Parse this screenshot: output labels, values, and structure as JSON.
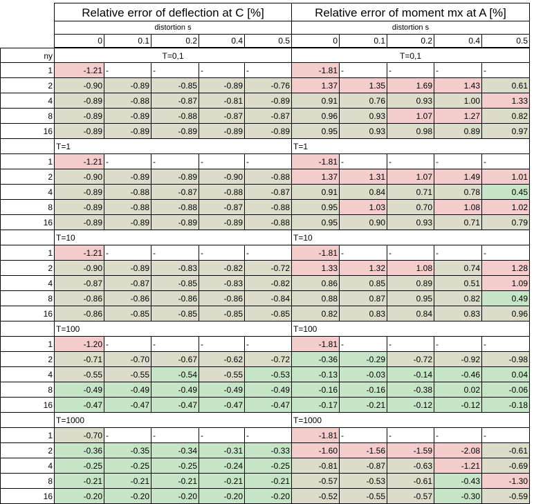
{
  "header": {
    "left_title": "Relative error of deflection at C [%]",
    "right_title": "Relative error of moment mx at A [%]",
    "left_sub": "distortion s",
    "right_sub": "distortion s",
    "s_values": [
      "0",
      "0.1",
      "0.2",
      "0.4",
      "0.5"
    ],
    "row_label": "ny"
  },
  "colors": {
    "green": "#c6e5c6",
    "red": "#f4cccc",
    "neutral": "#dcdccb",
    "white": "#ffffff"
  },
  "blocks": [
    {
      "left_label": "T=0,1",
      "right_label": "T=0,1",
      "rows": [
        {
          "ny": "1",
          "left": [
            "-1.21",
            "-",
            "-",
            "-",
            "-"
          ],
          "right": [
            "-1.81",
            "-",
            "-",
            "-",
            "-"
          ]
        },
        {
          "ny": "2",
          "left": [
            "-0.90",
            "-0.89",
            "-0.85",
            "-0.89",
            "-0.76"
          ],
          "right": [
            "1.37",
            "1.35",
            "1.69",
            "1.43",
            "0.61"
          ]
        },
        {
          "ny": "4",
          "left": [
            "-0.89",
            "-0.88",
            "-0.87",
            "-0.81",
            "-0.89"
          ],
          "right": [
            "0.91",
            "0.76",
            "0.93",
            "1.00",
            "1.33"
          ]
        },
        {
          "ny": "8",
          "left": [
            "-0.89",
            "-0.89",
            "-0.88",
            "-0.87",
            "-0.87"
          ],
          "right": [
            "0.96",
            "0.93",
            "1.07",
            "1.27",
            "0.82"
          ]
        },
        {
          "ny": "16",
          "left": [
            "-0.89",
            "-0.89",
            "-0.89",
            "-0.89",
            "-0.89"
          ],
          "right": [
            "0.95",
            "0.93",
            "0.98",
            "0.89",
            "0.97"
          ]
        }
      ]
    },
    {
      "left_label": "T=1",
      "right_label": "T=1",
      "rows": [
        {
          "ny": "1",
          "left": [
            "-1.21",
            "-",
            "-",
            "-",
            "-"
          ],
          "right": [
            "-1.81",
            "-",
            "-",
            "-",
            "-"
          ]
        },
        {
          "ny": "2",
          "left": [
            "-0.90",
            "-0.89",
            "-0.89",
            "-0.90",
            "-0.88"
          ],
          "right": [
            "1.37",
            "1.31",
            "1.07",
            "1.49",
            "1.01"
          ]
        },
        {
          "ny": "4",
          "left": [
            "-0.89",
            "-0.88",
            "-0.87",
            "-0.88",
            "-0.87"
          ],
          "right": [
            "0.91",
            "0.84",
            "0.71",
            "0.78",
            "0.45"
          ]
        },
        {
          "ny": "8",
          "left": [
            "-0.89",
            "-0.88",
            "-0.88",
            "-0.87",
            "-0.88"
          ],
          "right": [
            "0.95",
            "1.03",
            "0.70",
            "1.08",
            "1.02"
          ]
        },
        {
          "ny": "16",
          "left": [
            "-0.89",
            "-0.89",
            "-0.89",
            "-0.89",
            "-0.88"
          ],
          "right": [
            "0.95",
            "0.90",
            "0.93",
            "0.71",
            "0.79"
          ]
        }
      ]
    },
    {
      "left_label": "T=10",
      "right_label": "T=10",
      "rows": [
        {
          "ny": "1",
          "left": [
            "-1.21",
            "-",
            "-",
            "-",
            "-"
          ],
          "right": [
            "-1.81",
            "-",
            "-",
            "-",
            "-"
          ]
        },
        {
          "ny": "2",
          "left": [
            "-0.90",
            "-0.89",
            "-0.83",
            "-0.82",
            "-0.72"
          ],
          "right": [
            "1.33",
            "1.32",
            "1.08",
            "0.74",
            "1.28"
          ]
        },
        {
          "ny": "4",
          "left": [
            "-0.87",
            "-0.87",
            "-0.85",
            "-0.83",
            "-0.82"
          ],
          "right": [
            "0.86",
            "0.85",
            "0.89",
            "0.51",
            "1.09"
          ]
        },
        {
          "ny": "8",
          "left": [
            "-0.86",
            "-0.86",
            "-0.86",
            "-0.86",
            "-0.84"
          ],
          "right": [
            "0.88",
            "0.87",
            "0.95",
            "0.82",
            "0.49"
          ]
        },
        {
          "ny": "16",
          "left": [
            "-0.86",
            "-0.85",
            "-0.85",
            "-0.85",
            "-0.85"
          ],
          "right": [
            "0.82",
            "0.83",
            "0.84",
            "0.83",
            "0.96"
          ]
        }
      ]
    },
    {
      "left_label": "T=100",
      "right_label": "T=100",
      "rows": [
        {
          "ny": "1",
          "left": [
            "-1.20",
            "-",
            "-",
            "-",
            "-"
          ],
          "right": [
            "-1.81",
            "-",
            "-",
            "-",
            "-"
          ]
        },
        {
          "ny": "2",
          "left": [
            "-0.71",
            "-0.70",
            "-0.67",
            "-0.62",
            "-0.72"
          ],
          "right": [
            "-0.36",
            "-0.29",
            "-0.72",
            "-0.92",
            "-0.98"
          ]
        },
        {
          "ny": "4",
          "left": [
            "-0.55",
            "-0.55",
            "-0.54",
            "-0.55",
            "-0.53"
          ],
          "right": [
            "-0.13",
            "-0.03",
            "-0.14",
            "-0.46",
            "0.04"
          ]
        },
        {
          "ny": "8",
          "left": [
            "-0.49",
            "-0.49",
            "-0.49",
            "-0.49",
            "-0.49"
          ],
          "right": [
            "-0.16",
            "-0.16",
            "-0.38",
            "0.02",
            "-0.06"
          ]
        },
        {
          "ny": "16",
          "left": [
            "-0.47",
            "-0.47",
            "-0.47",
            "-0.47",
            "-0.47"
          ],
          "right": [
            "-0.17",
            "-0.21",
            "-0.12",
            "-0.12",
            "-0.18"
          ]
        }
      ]
    },
    {
      "left_label": "T=1000",
      "right_label": "T=1000",
      "rows": [
        {
          "ny": "1",
          "left": [
            "-0.70",
            "-",
            "-",
            "-",
            "-"
          ],
          "right": [
            "-1.81",
            "-",
            "-",
            "-",
            "-"
          ]
        },
        {
          "ny": "2",
          "left": [
            "-0.36",
            "-0.35",
            "-0.34",
            "-0.31",
            "-0.33"
          ],
          "right": [
            "-1.60",
            "-1.56",
            "-1.59",
            "-2.08",
            "-0.61"
          ]
        },
        {
          "ny": "4",
          "left": [
            "-0.25",
            "-0.25",
            "-0.25",
            "-0.24",
            "-0.25"
          ],
          "right": [
            "-0.81",
            "-0.87",
            "-0.63",
            "-1.21",
            "-0.69"
          ]
        },
        {
          "ny": "8",
          "left": [
            "-0.21",
            "-0.21",
            "-0.21",
            "-0.21",
            "-0.21"
          ],
          "right": [
            "-0.57",
            "-0.53",
            "-0.61",
            "-0.43",
            "-1.30"
          ]
        },
        {
          "ny": "16",
          "left": [
            "-0.20",
            "-0.20",
            "-0.20",
            "-0.20",
            "-0.20"
          ],
          "right": [
            "-0.52",
            "-0.55",
            "-0.57",
            "-0.30",
            "-0.59"
          ]
        }
      ]
    }
  ]
}
